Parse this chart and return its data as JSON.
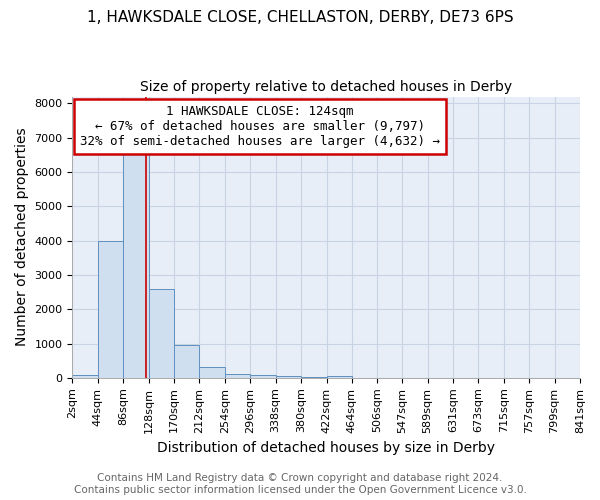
{
  "title": "1, HAWKSDALE CLOSE, CHELLASTON, DERBY, DE73 6PS",
  "subtitle": "Size of property relative to detached houses in Derby",
  "xlabel": "Distribution of detached houses by size in Derby",
  "ylabel": "Number of detached properties",
  "footer_line1": "Contains HM Land Registry data © Crown copyright and database right 2024.",
  "footer_line2": "Contains public sector information licensed under the Open Government Licence v3.0.",
  "annotation_line1": "1 HAWKSDALE CLOSE: 124sqm",
  "annotation_line2": "← 67% of detached houses are smaller (9,797)",
  "annotation_line3": "32% of semi-detached houses are larger (4,632) →",
  "property_size": 124,
  "bin_edges": [
    2,
    44,
    86,
    128,
    170,
    212,
    254,
    296,
    338,
    380,
    422,
    464,
    506,
    547,
    589,
    631,
    673,
    715,
    757,
    799,
    841
  ],
  "bar_heights": [
    80,
    4000,
    6600,
    2600,
    950,
    320,
    120,
    80,
    50,
    30,
    60,
    0,
    0,
    0,
    0,
    0,
    0,
    0,
    0,
    0
  ],
  "bar_color": "#d0dff0",
  "bar_edge_color": "#6090c0",
  "vline_color": "#cc0000",
  "annotation_box_color": "#cc0000",
  "ylim": [
    0,
    8200
  ],
  "yticks": [
    0,
    1000,
    2000,
    3000,
    4000,
    5000,
    6000,
    7000,
    8000
  ],
  "grid_color": "#c8d4e4",
  "plot_bg_color": "#e8eef8",
  "fig_bg_color": "#ffffff",
  "title_fontsize": 11,
  "subtitle_fontsize": 10,
  "axis_label_fontsize": 10,
  "tick_fontsize": 8,
  "annotation_fontsize": 9,
  "footer_fontsize": 7.5
}
